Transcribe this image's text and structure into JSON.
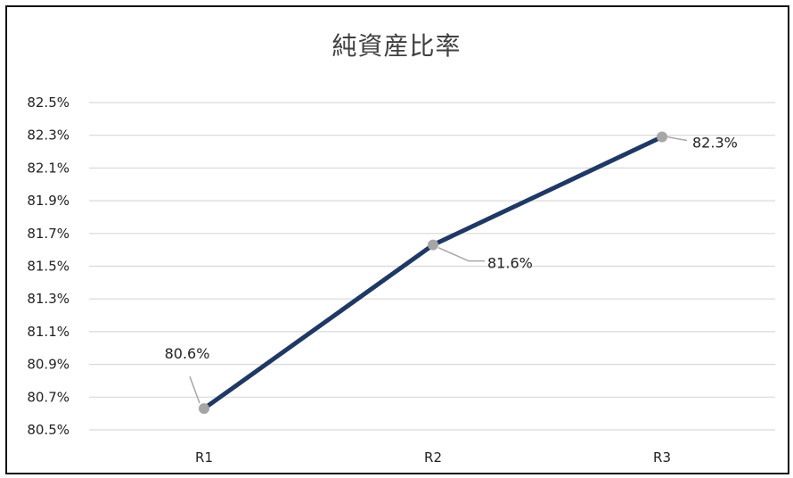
{
  "chart_data": {
    "type": "line",
    "title": "純資産比率",
    "categories": [
      "R1",
      "R2",
      "R3"
    ],
    "series": [
      {
        "values": [
          80.63,
          81.63,
          82.29
        ],
        "data_labels": [
          "80.6%",
          "81.6%",
          "82.3%"
        ]
      }
    ],
    "y_ticks": [
      "80.5%",
      "80.7%",
      "80.9%",
      "81.1%",
      "81.3%",
      "81.5%",
      "81.7%",
      "81.9%",
      "82.1%",
      "82.3%",
      "82.5%"
    ],
    "ylim": [
      80.5,
      82.5
    ],
    "xlabel": "",
    "ylabel": "",
    "grid": true,
    "legend": "none",
    "colors": {
      "line": "#1f3864",
      "marker": "#a6a6a6",
      "grid": "#d9d9d9",
      "leader": "#a6a6a6"
    }
  }
}
